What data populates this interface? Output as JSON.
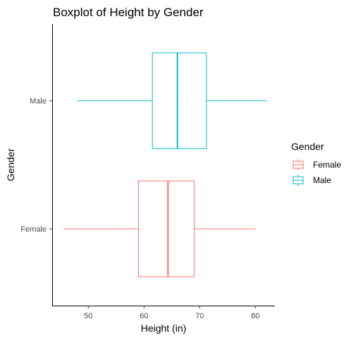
{
  "chart_data": {
    "type": "boxplot",
    "orientation": "horizontal",
    "title": "Boxplot of Height by Gender",
    "xlabel": "Height (in)",
    "ylabel": "Gender",
    "xlim": [
      43.5,
      83.5
    ],
    "x_ticks": [
      50,
      60,
      70,
      80
    ],
    "categories": [
      "Female",
      "Male"
    ],
    "series": [
      {
        "name": "Female",
        "color": "#F8766D",
        "min": 45.5,
        "q1": 59,
        "median": 64.3,
        "q3": 69,
        "max": 80
      },
      {
        "name": "Male",
        "color": "#00BFC4",
        "min": 48,
        "q1": 61.5,
        "median": 66,
        "q3": 71.2,
        "max": 82
      }
    ],
    "legend": {
      "title": "Gender",
      "position": "right"
    },
    "grid": false
  }
}
